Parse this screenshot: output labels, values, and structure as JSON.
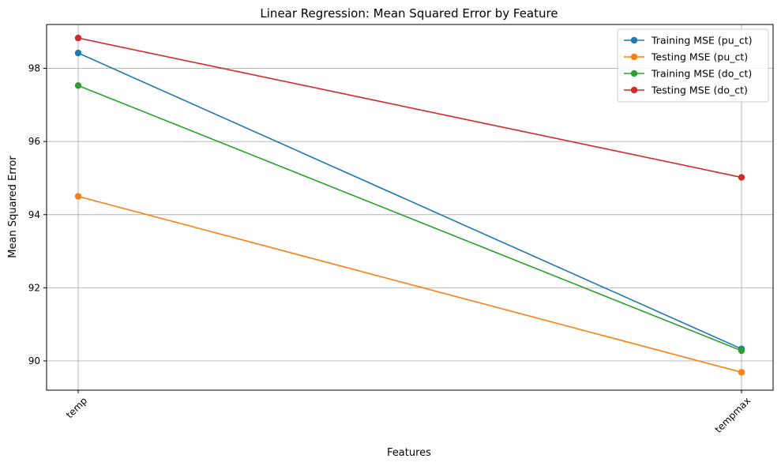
{
  "chart_data": {
    "type": "line",
    "title": "Linear Regression: Mean Squared Error by Feature",
    "xlabel": "Features",
    "ylabel": "Mean Squared Error",
    "categories": [
      "temp",
      "tempmax"
    ],
    "yticks": [
      90,
      92,
      94,
      96,
      98
    ],
    "ylim": [
      89.2,
      99.2
    ],
    "grid": true,
    "legend_position": "top-right",
    "series": [
      {
        "name": "Training MSE (pu_ct)",
        "color": "#1f77b4",
        "values": [
          98.42,
          90.33
        ]
      },
      {
        "name": "Testing MSE (pu_ct)",
        "color": "#ff7f0e",
        "values": [
          94.5,
          89.69
        ]
      },
      {
        "name": "Training MSE (do_ct)",
        "color": "#2ca02c",
        "values": [
          97.53,
          90.28
        ]
      },
      {
        "name": "Testing MSE (do_ct)",
        "color": "#d62728",
        "values": [
          98.83,
          95.02
        ]
      }
    ]
  }
}
